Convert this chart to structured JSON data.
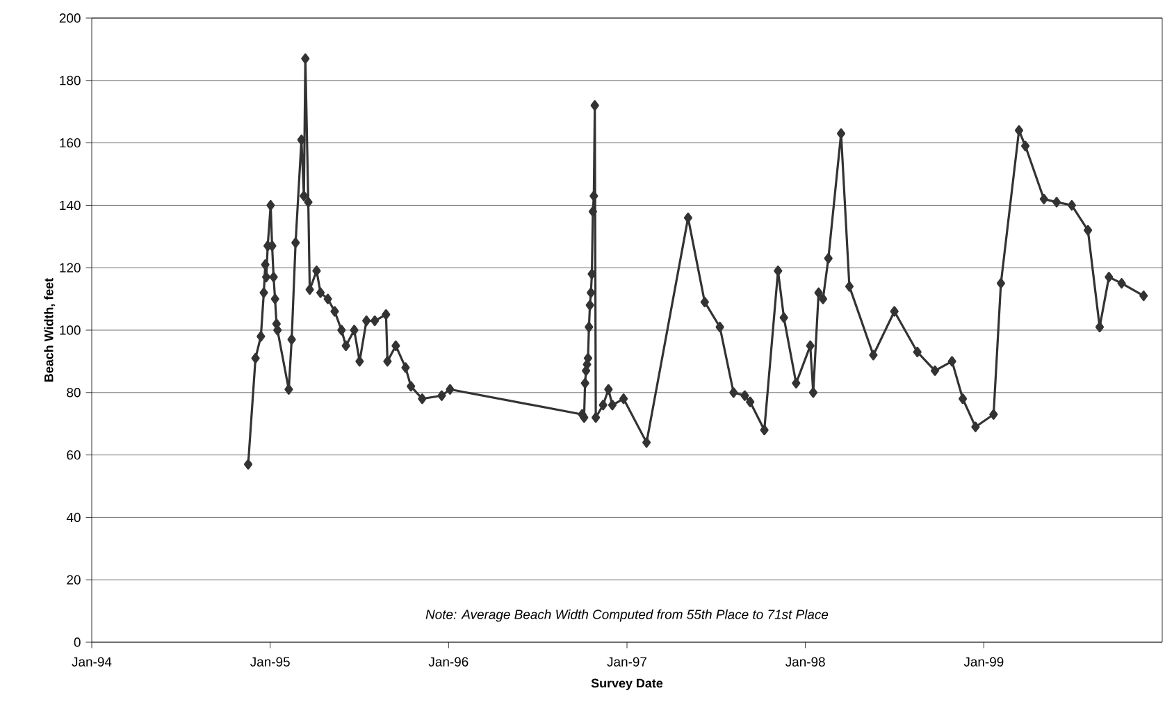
{
  "chart_data": {
    "type": "line",
    "xlabel": "Survey Date",
    "ylabel": "Beach Width, feet",
    "annotations": [
      "Note:  Average Beach Width Computed from 55th Place to 71st Place"
    ],
    "x": [
      "1994-11-17",
      "1994-12-02",
      "1994-12-13",
      "1994-12-19",
      "1994-12-22",
      "1994-12-24",
      "1994-12-27",
      "1995-01-02",
      "1995-01-05",
      "1995-01-08",
      "1995-01-11",
      "1995-01-14",
      "1995-01-16",
      "1995-02-08",
      "1995-02-14",
      "1995-02-22",
      "1995-03-06",
      "1995-03-11",
      "1995-03-14",
      "1995-03-20",
      "1995-03-23",
      "1995-04-06",
      "1995-04-14",
      "1995-04-29",
      "1995-05-13",
      "1995-05-27",
      "1995-06-05",
      "1995-06-22",
      "1995-07-03",
      "1995-07-17",
      "1995-08-03",
      "1995-08-26",
      "1995-08-29",
      "1995-09-15",
      "1995-10-05",
      "1995-10-16",
      "1995-11-08",
      "1995-12-18",
      "1996-01-04",
      "1996-10-01",
      "1996-10-05",
      "1996-10-07",
      "1996-10-09",
      "1996-10-11",
      "1996-10-13",
      "1996-10-15",
      "1996-10-17",
      "1996-10-19",
      "1996-10-21",
      "1996-10-23",
      "1996-10-25",
      "1996-10-27",
      "1996-10-29",
      "1996-11-13",
      "1996-11-24",
      "1996-12-02",
      "1996-12-25",
      "1997-02-10",
      "1997-05-06",
      "1997-06-09",
      "1997-07-10",
      "1997-08-07",
      "1997-08-30",
      "1997-09-10",
      "1997-10-09",
      "1997-11-06",
      "1997-11-18",
      "1997-12-13",
      "1998-01-11",
      "1998-01-17",
      "1998-01-28",
      "1998-02-06",
      "1998-02-17",
      "1998-03-15",
      "1998-04-01",
      "1998-05-20",
      "1998-07-02",
      "1998-08-18",
      "1998-09-23",
      "1998-10-28",
      "1998-11-19",
      "1998-12-15",
      "1999-01-21",
      "1999-02-05",
      "1999-03-14",
      "1999-03-27",
      "1999-05-04",
      "1999-05-30",
      "1999-06-30",
      "1999-08-02",
      "1999-08-26",
      "1999-09-14",
      "1999-10-10",
      "1999-11-24"
    ],
    "series": [
      {
        "color": "#333333",
        "values": [
          57,
          91,
          98,
          112,
          121,
          117,
          127,
          140,
          127,
          117,
          110,
          102,
          100,
          81,
          97,
          128,
          161,
          143,
          187,
          141,
          113,
          119,
          112,
          110,
          106,
          100,
          95,
          100,
          90,
          103,
          103,
          105,
          90,
          95,
          88,
          82,
          78,
          79,
          81,
          73,
          72,
          83,
          87,
          89,
          91,
          101,
          108,
          112,
          118,
          138,
          143,
          172,
          72,
          76,
          81,
          76,
          78,
          64,
          136,
          109,
          101,
          80,
          79,
          77,
          68,
          119,
          104,
          83,
          95,
          80,
          112,
          110,
          123,
          163,
          114,
          92,
          106,
          93,
          87,
          90,
          78,
          69,
          73,
          115,
          164,
          159,
          142,
          141,
          140,
          132,
          101,
          117,
          115,
          111
        ]
      }
    ],
    "xlim": [
      "1994-01",
      "2000-01"
    ],
    "xticks": [
      {
        "value": "1994-01",
        "label": "Jan-94"
      },
      {
        "value": "1995-01",
        "label": "Jan-95"
      },
      {
        "value": "1996-01",
        "label": "Jan-96"
      },
      {
        "value": "1997-01",
        "label": "Jan-97"
      },
      {
        "value": "1998-01",
        "label": "Jan-98"
      },
      {
        "value": "1999-01",
        "label": "Jan-99"
      }
    ],
    "ylim": [
      0,
      200
    ],
    "yticks": [
      0,
      20,
      40,
      60,
      80,
      100,
      120,
      140,
      160,
      180,
      200
    ],
    "grid": "y",
    "marker": "diamond",
    "line_style": "solid"
  }
}
